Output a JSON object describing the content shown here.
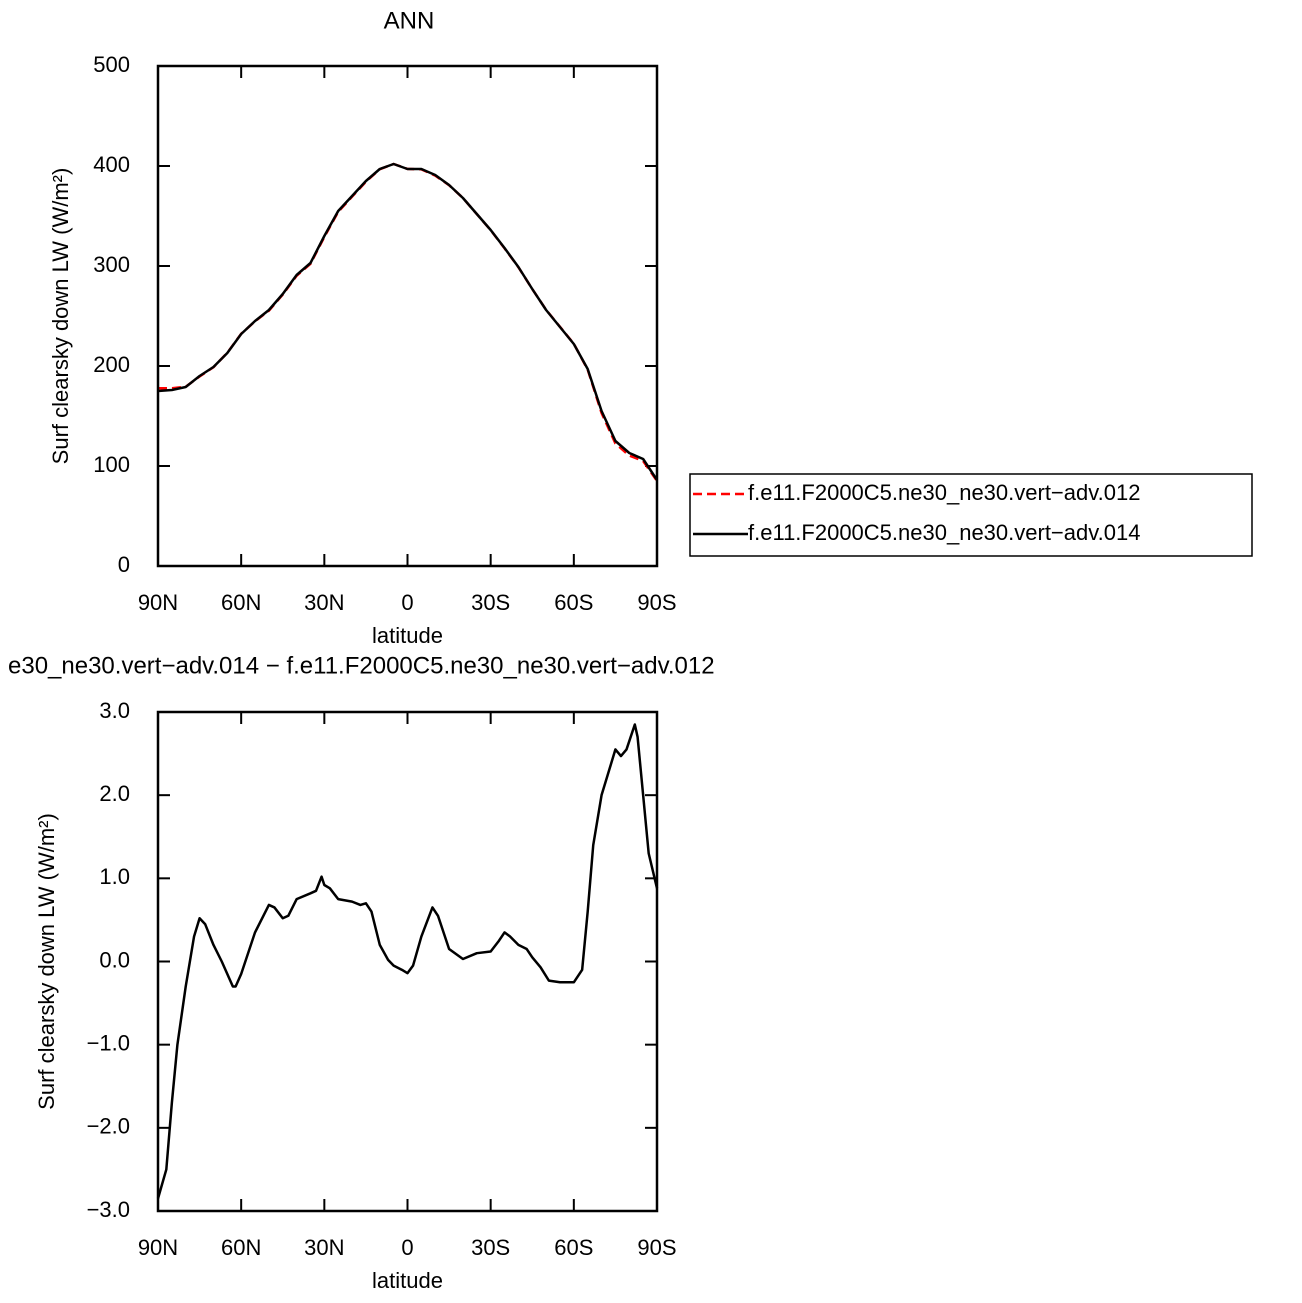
{
  "chart_data": [
    {
      "type": "line",
      "title": "ANN",
      "xlabel": "latitude",
      "ylabel": "Surf clearsky down LW (W/m²)",
      "xlim": [
        90,
        -90
      ],
      "xticks": [
        {
          "value": 90,
          "label": "90N"
        },
        {
          "value": 60,
          "label": "60N"
        },
        {
          "value": 30,
          "label": "30N"
        },
        0,
        {
          "value": -30,
          "label": "30S"
        },
        {
          "value": -60,
          "label": "60S"
        },
        {
          "value": -90,
          "label": "90S"
        }
      ],
      "ylim": [
        0,
        500
      ],
      "yticks": [
        0,
        100,
        200,
        300,
        400,
        500
      ],
      "legend": "right",
      "x": [
        90,
        85,
        80,
        75,
        70,
        65,
        60,
        55,
        50,
        45,
        40,
        35,
        30,
        25,
        20,
        15,
        10,
        5,
        0,
        -5,
        -10,
        -15,
        -20,
        -25,
        -30,
        -35,
        -40,
        -45,
        -50,
        -55,
        -60,
        -65,
        -70,
        -75,
        -80,
        -85,
        -90
      ],
      "series": [
        {
          "name": "f.e11.F2000C5.ne30_ne30.vert−adv.012",
          "color": "#ff0000",
          "line_style": "dashed",
          "values": [
            177.8,
            177.7,
            179.3,
            189.5,
            198.8,
            213.2,
            232.2,
            244.7,
            255.3,
            271.5,
            290.2,
            302.2,
            329.1,
            354.2,
            369.3,
            384.3,
            396.8,
            402,
            397.1,
            396.7,
            390.4,
            380.8,
            368,
            351.9,
            335.9,
            317.7,
            298.8,
            277,
            256.2,
            239.2,
            222.2,
            196.4,
            153,
            122.5,
            110.4,
            105,
            85.1
          ]
        },
        {
          "name": "f.e11.F2000C5.ne30_ne30.vert−adv.014",
          "color": "#000000",
          "line_style": "solid",
          "values": [
            175,
            176,
            179,
            190,
            199,
            213,
            232,
            245,
            256,
            272,
            291,
            303,
            330,
            355,
            370,
            385,
            397,
            402,
            397,
            397,
            391,
            381,
            368,
            352,
            336,
            318,
            299,
            277,
            256,
            239,
            222,
            197,
            155,
            125,
            113,
            107,
            86
          ]
        }
      ]
    },
    {
      "type": "line",
      "title": "e30_ne30.vert−adv.014 − f.e11.F2000C5.ne30_ne30.vert−adv.012",
      "xlabel": "latitude",
      "ylabel": "Surf clearsky down LW (W/m²)",
      "xlim": [
        90,
        -90
      ],
      "xticks": [
        {
          "value": 90,
          "label": "90N"
        },
        {
          "value": 60,
          "label": "60N"
        },
        {
          "value": 30,
          "label": "30N"
        },
        0,
        {
          "value": -30,
          "label": "30S"
        },
        {
          "value": -60,
          "label": "60S"
        },
        {
          "value": -90,
          "label": "90S"
        }
      ],
      "ylim": [
        -3,
        3
      ],
      "yticks": [
        {
          "value": -3,
          "label": "−3.0"
        },
        {
          "value": -2,
          "label": "−2.0"
        },
        {
          "value": -1,
          "label": "−1.0"
        },
        {
          "value": 0,
          "label": "0.0"
        },
        {
          "value": 1,
          "label": "1.0"
        },
        {
          "value": 2,
          "label": "2.0"
        },
        {
          "value": 3,
          "label": "3.0"
        }
      ],
      "x": [
        90,
        87,
        85,
        83,
        80,
        77,
        75,
        73,
        70,
        67,
        65,
        63,
        62,
        60,
        55,
        50,
        48,
        45,
        43,
        40,
        35,
        33,
        31,
        30,
        28,
        25,
        20,
        17,
        15,
        13,
        10,
        7,
        5,
        2,
        0,
        -2,
        -5,
        -9,
        -11,
        -15,
        -20,
        -25,
        -30,
        -33,
        -35,
        -37,
        -40,
        -43,
        -45,
        -48,
        -51,
        -55,
        -60,
        -63,
        -65,
        -67,
        -70,
        -75,
        -77,
        -79,
        -82,
        -83,
        -85,
        -87,
        -90
      ],
      "series": [
        {
          "color": "#000000",
          "line_style": "solid",
          "values": [
            -2.85,
            -2.5,
            -1.7,
            -1.0,
            -0.3,
            0.3,
            0.52,
            0.45,
            0.2,
            0.0,
            -0.15,
            -0.3,
            -0.3,
            -0.15,
            0.35,
            0.68,
            0.65,
            0.52,
            0.55,
            0.75,
            0.82,
            0.85,
            1.02,
            0.92,
            0.88,
            0.75,
            0.72,
            0.68,
            0.7,
            0.6,
            0.2,
            0.02,
            -0.05,
            -0.1,
            -0.14,
            -0.05,
            0.3,
            0.65,
            0.55,
            0.15,
            0.03,
            0.1,
            0.12,
            0.25,
            0.35,
            0.3,
            0.2,
            0.15,
            0.05,
            -0.07,
            -0.23,
            -0.25,
            -0.25,
            -0.1,
            0.6,
            1.4,
            2.0,
            2.55,
            2.47,
            2.55,
            2.85,
            2.7,
            2.0,
            1.3,
            0.88
          ]
        }
      ]
    }
  ]
}
